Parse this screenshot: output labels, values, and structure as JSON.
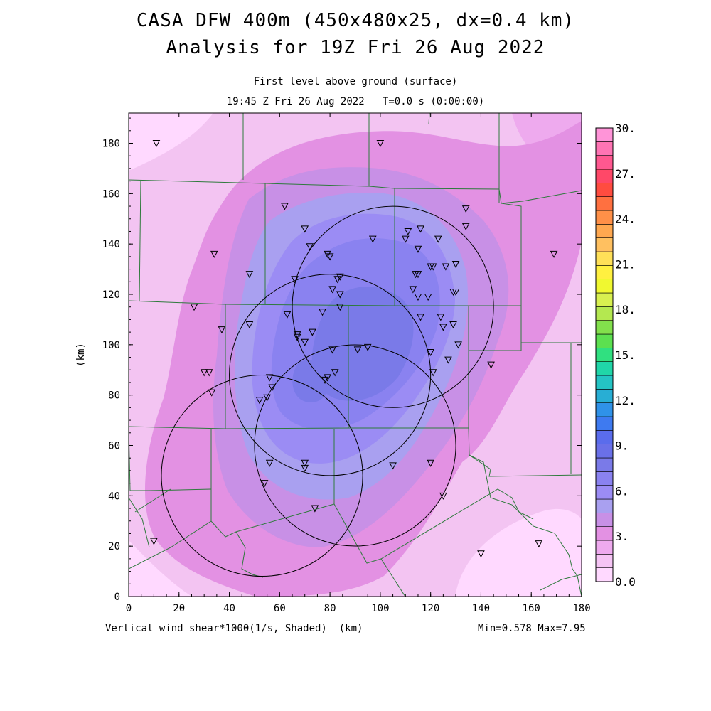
{
  "header": {
    "title_line1": "CASA DFW 400m (450x480x25, dx=0.4 km)",
    "title_line2": "Analysis for 19Z Fri 26 Aug 2022",
    "subtitle_line1": "First level above ground (surface)",
    "subtitle_line2": "19:45 Z Fri 26 Aug 2022   T=0.0 s (0:00:00)"
  },
  "footer": {
    "field_label": "Vertical wind shear*1000(1/s, Shaded)  (km)",
    "min_max": "Min=0.578 Max=7.95"
  },
  "axes": {
    "x_range_km": [
      0,
      180
    ],
    "y_range_km": [
      0,
      192
    ],
    "x_ticks": [
      "0",
      "20",
      "40",
      "60",
      "80",
      "100",
      "120",
      "140",
      "160",
      "180"
    ],
    "y_ticks": [
      "0",
      "20",
      "40",
      "60",
      "80",
      "100",
      "120",
      "140",
      "160",
      "180"
    ],
    "y_label": "(km)"
  },
  "colorbar": {
    "labels": [
      "0.0",
      "3.",
      "6.",
      "9.",
      "12.",
      "15.",
      "18.",
      "21.",
      "24.",
      "27.",
      "30."
    ],
    "colors": [
      "#ffd9ff",
      "#f5c4f4",
      "#eeaaee",
      "#e391e3",
      "#c890e6",
      "#a9a0f0",
      "#9b8cf4",
      "#8a82f0",
      "#7a7ae8",
      "#6a70e8",
      "#5a6cec",
      "#3e7af0",
      "#2f92e8",
      "#28aed4",
      "#24c4c4",
      "#20d6a8",
      "#30e080",
      "#5ce050",
      "#82e04c",
      "#b4e850",
      "#d8f050",
      "#f0f830",
      "#fff040",
      "#ffe058",
      "#ffc060",
      "#ffa850",
      "#ff9048",
      "#ff7040",
      "#ff4c40",
      "#ff4868",
      "#ff5890",
      "#ff74b4",
      "#ff94d8"
    ]
  },
  "map": {
    "field_shading": "vertical wind shear",
    "county_line_color": "#2e7a3c",
    "radar_range_rings": [
      {
        "center_km": [
          105,
          115
        ],
        "radius_km": 40
      },
      {
        "center_km": [
          80,
          88
        ],
        "radius_km": 40
      },
      {
        "center_km": [
          53,
          48
        ],
        "radius_km": 40
      },
      {
        "center_km": [
          90,
          60
        ],
        "radius_km": 40
      }
    ],
    "stations_km": [
      [
        11,
        180
      ],
      [
        100,
        180
      ],
      [
        62,
        155
      ],
      [
        134,
        154
      ],
      [
        134,
        147
      ],
      [
        70,
        146
      ],
      [
        111,
        145
      ],
      [
        116,
        146
      ],
      [
        110,
        142
      ],
      [
        97,
        142
      ],
      [
        123,
        142
      ],
      [
        34,
        136
      ],
      [
        72,
        139
      ],
      [
        115,
        138
      ],
      [
        79,
        136
      ],
      [
        80,
        135
      ],
      [
        48,
        128
      ],
      [
        126,
        131
      ],
      [
        130,
        132
      ],
      [
        120,
        131
      ],
      [
        121,
        131
      ],
      [
        114,
        128
      ],
      [
        115,
        128
      ],
      [
        83,
        126
      ],
      [
        84,
        127
      ],
      [
        66,
        126
      ],
      [
        113,
        122
      ],
      [
        81,
        122
      ],
      [
        84,
        120
      ],
      [
        129,
        121
      ],
      [
        130,
        121
      ],
      [
        115,
        119
      ],
      [
        119,
        119
      ],
      [
        26,
        115
      ],
      [
        84,
        115
      ],
      [
        77,
        113
      ],
      [
        63,
        112
      ],
      [
        116,
        111
      ],
      [
        124,
        111
      ],
      [
        125,
        107
      ],
      [
        129,
        108
      ],
      [
        48,
        108
      ],
      [
        37,
        106
      ],
      [
        73,
        105
      ],
      [
        67,
        104
      ],
      [
        67,
        103
      ],
      [
        70,
        101
      ],
      [
        131,
        100
      ],
      [
        95,
        99
      ],
      [
        91,
        98
      ],
      [
        81,
        98
      ],
      [
        120,
        97
      ],
      [
        127,
        94
      ],
      [
        144,
        92
      ],
      [
        30,
        89
      ],
      [
        32,
        89
      ],
      [
        121,
        89
      ],
      [
        82,
        89
      ],
      [
        56,
        87
      ],
      [
        78,
        86
      ],
      [
        79,
        87
      ],
      [
        57,
        83
      ],
      [
        33,
        81
      ],
      [
        55,
        79
      ],
      [
        52,
        78
      ],
      [
        70,
        53
      ],
      [
        70,
        51
      ],
      [
        56,
        53
      ],
      [
        105,
        52
      ],
      [
        120,
        53
      ],
      [
        54,
        45
      ],
      [
        125,
        40
      ],
      [
        74,
        35
      ],
      [
        10,
        22
      ],
      [
        140,
        17
      ],
      [
        163,
        21
      ],
      [
        169,
        136
      ]
    ]
  }
}
